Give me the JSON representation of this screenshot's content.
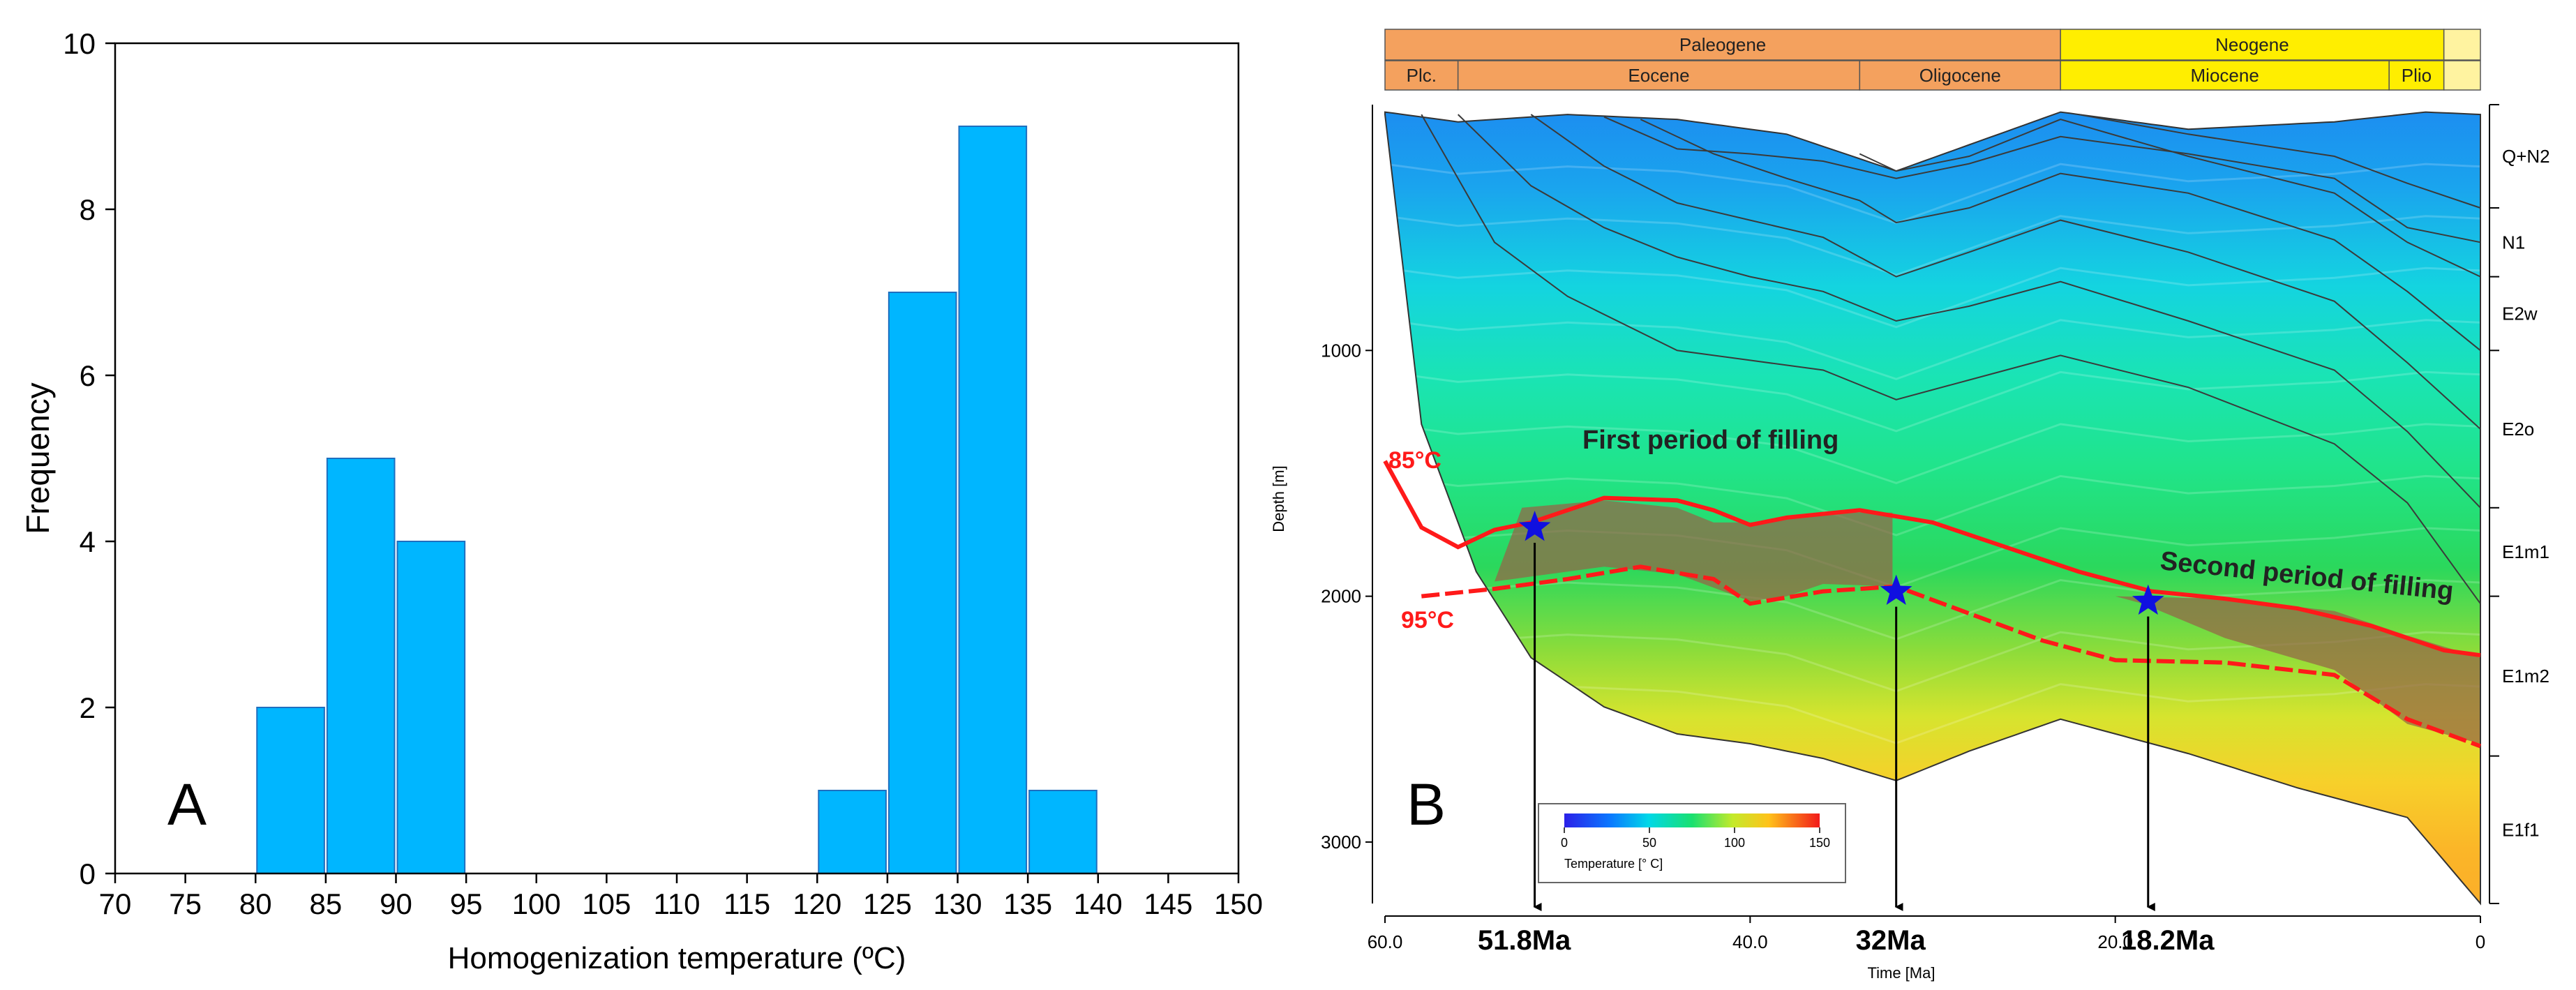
{
  "colors": {
    "bar_fill": "#00b6ff",
    "bar_stroke": "#1f6fbf",
    "isotherm": "#ff1a1a",
    "star": "#1010e0",
    "paleogene": "#f4a15e",
    "neogene": "#ffee00",
    "quaternary": "#fff3a0"
  },
  "chart_data": [
    {
      "type": "bar",
      "panel_label": "A",
      "xlabel": "Homogenization temperature (ºC)",
      "ylabel": "Frequency",
      "xlim": [
        70,
        150
      ],
      "ylim": [
        0,
        10
      ],
      "x_ticks": [
        "70",
        "75",
        "80",
        "85",
        "90",
        "95",
        "100",
        "105",
        "110",
        "115",
        "120",
        "125",
        "130",
        "135",
        "140",
        "145",
        "150"
      ],
      "y_ticks": [
        "0",
        "2",
        "4",
        "6",
        "8",
        "10"
      ],
      "bin_width": 5,
      "bins": [
        {
          "start": 80,
          "value": 2
        },
        {
          "start": 85,
          "value": 5
        },
        {
          "start": 90,
          "value": 4
        },
        {
          "start": 120,
          "value": 1
        },
        {
          "start": 125,
          "value": 7
        },
        {
          "start": 130,
          "value": 9
        },
        {
          "start": 135,
          "value": 1
        }
      ]
    },
    {
      "type": "area",
      "panel_label": "B",
      "xlabel": "Time [Ma]",
      "ylabel": "Depth [m]",
      "xlim": [
        60,
        0
      ],
      "ylim": [
        0,
        3250
      ],
      "x_ticks": [
        "60.0",
        "40.0",
        "20.0",
        "0"
      ],
      "y_ticks": [
        "1000",
        "2000",
        "3000"
      ],
      "periods": [
        {
          "label": "Paleogene",
          "start": 60,
          "end": 23
        },
        {
          "label": "Neogene",
          "start": 23,
          "end": 2
        },
        {
          "label": "",
          "start": 2,
          "end": 0
        }
      ],
      "epochs": [
        {
          "label": "Plc.",
          "start": 60,
          "end": 56
        },
        {
          "label": "Eocene",
          "start": 56,
          "end": 34
        },
        {
          "label": "Oligocene",
          "start": 34,
          "end": 23
        },
        {
          "label": "Miocene",
          "start": 23,
          "end": 5
        },
        {
          "label": "Plio",
          "start": 5,
          "end": 2
        },
        {
          "label": "",
          "start": 2,
          "end": 0
        }
      ],
      "formations": [
        "Q+N2",
        "N1",
        "E2w",
        "E2o",
        "E1m1",
        "E1m2",
        "E1f1"
      ],
      "isotherm_labels": [
        "85°C",
        "95°C"
      ],
      "annotations": [
        "First period of filling",
        "Second period of filling"
      ],
      "events": [
        {
          "label": "51.8Ma",
          "time": 51.8,
          "depth": 1720
        },
        {
          "label": "32Ma",
          "time": 32,
          "depth": 1980
        },
        {
          "label": "18.2Ma",
          "time": 18.2,
          "depth": 2020
        }
      ],
      "colorbar": {
        "title": "Temperature [° C]",
        "ticks": [
          "0",
          "50",
          "100",
          "150"
        ],
        "range": [
          0,
          150
        ]
      }
    }
  ]
}
